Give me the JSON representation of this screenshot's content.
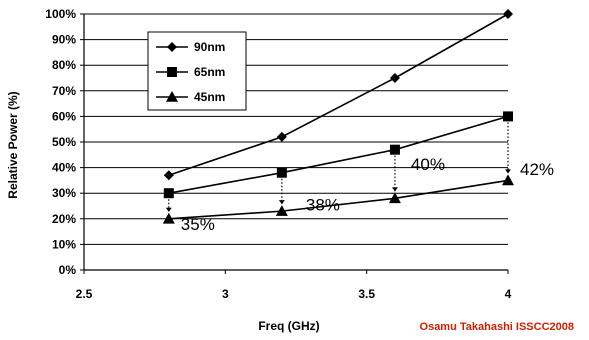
{
  "chart_data": {
    "type": "line",
    "xlabel": "Freq (GHz)",
    "ylabel": "Relative Power (%)",
    "xlim": [
      2.5,
      4
    ],
    "ylim": [
      0,
      100
    ],
    "x_ticks": [
      "2.5",
      "3",
      "3.5",
      "4"
    ],
    "y_ticks": [
      "0%",
      "10%",
      "20%",
      "30%",
      "40%",
      "50%",
      "60%",
      "70%",
      "80%",
      "90%",
      "100%"
    ],
    "grid": "horizontal",
    "legend_position": "top-left",
    "series": [
      {
        "name": "90nm",
        "marker": "diamond",
        "x": [
          2.8,
          3.2,
          3.6,
          4.0
        ],
        "values": [
          37,
          52,
          75,
          100
        ]
      },
      {
        "name": "65nm",
        "marker": "square",
        "x": [
          2.8,
          3.2,
          3.6,
          4.0
        ],
        "values": [
          30,
          38,
          47,
          60
        ]
      },
      {
        "name": "45nm",
        "marker": "triangle",
        "x": [
          2.8,
          3.2,
          3.6,
          4.0
        ],
        "values": [
          20,
          23,
          28,
          35
        ]
      }
    ],
    "annotations": [
      {
        "text": "35%",
        "x": 2.8
      },
      {
        "text": "38%",
        "x": 3.2
      },
      {
        "text": "40%",
        "x": 3.6
      },
      {
        "text": "42%",
        "x": 4.0
      }
    ]
  },
  "credit": {
    "text": "Osamu Takahashi  ISSCC2008",
    "color": "#cc2200"
  }
}
